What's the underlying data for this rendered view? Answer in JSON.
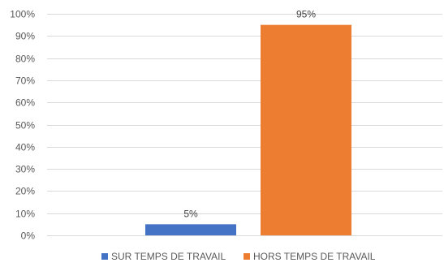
{
  "chart_data": {
    "type": "bar",
    "title": "",
    "xlabel": "",
    "ylabel": "",
    "categories": [
      "SUR TEMPS DE TRAVAIL",
      "HORS TEMPS DE TRAVAIL"
    ],
    "values": [
      5,
      95
    ],
    "value_format": "percent",
    "colors": [
      "#4472C4",
      "#ED7D31"
    ],
    "data_labels": [
      "5%",
      "95%"
    ],
    "ylim": [
      0,
      100
    ],
    "y_ticks": [
      0,
      10,
      20,
      30,
      40,
      50,
      60,
      70,
      80,
      90,
      100
    ],
    "y_tick_labels": [
      "0%",
      "10%",
      "20%",
      "30%",
      "40%",
      "50%",
      "60%",
      "70%",
      "80%",
      "90%",
      "100%"
    ],
    "grid": true,
    "legend": {
      "position": "bottom",
      "entries": [
        {
          "label": "SUR TEMPS DE TRAVAIL",
          "color": "#4472C4"
        },
        {
          "label": "HORS TEMPS DE TRAVAIL",
          "color": "#ED7D31"
        }
      ]
    }
  }
}
